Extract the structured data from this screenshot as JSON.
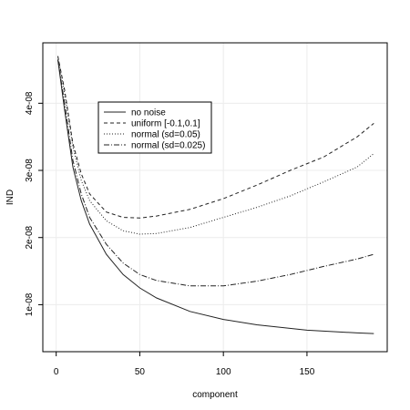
{
  "chart_data": {
    "type": "line",
    "title": "",
    "xlabel": "component",
    "ylabel": "IND",
    "xlim": [
      -8,
      198
    ],
    "ylim": [
      3e-09,
      4.9e-08
    ],
    "x_ticks": [
      0,
      50,
      100,
      150
    ],
    "x_tick_labels": [
      "0",
      "50",
      "100",
      "150"
    ],
    "y_ticks": [
      1e-08,
      2e-08,
      3e-08,
      4e-08
    ],
    "y_tick_labels": [
      "1e-08",
      "2e-08",
      "3e-08",
      "4e-08"
    ],
    "grid": true,
    "legend_position": "top-left",
    "series": [
      {
        "name": "no noise",
        "dash": "",
        "x": [
          1,
          5,
          10,
          15,
          20,
          30,
          40,
          50,
          60,
          80,
          100,
          120,
          150,
          180,
          190
        ],
        "y": [
          4.65e-08,
          3.9e-08,
          3.05e-08,
          2.55e-08,
          2.2e-08,
          1.75e-08,
          1.45e-08,
          1.25e-08,
          1.1e-08,
          9e-09,
          7.8e-09,
          7e-09,
          6.2e-09,
          5.8e-09,
          5.7e-09
        ]
      },
      {
        "name": "uniform [-0.1,0.1]",
        "dash": "4,3",
        "x": [
          1,
          5,
          10,
          15,
          20,
          30,
          40,
          50,
          60,
          80,
          100,
          120,
          140,
          160,
          180,
          190
        ],
        "y": [
          4.7e-08,
          4.2e-08,
          3.4e-08,
          2.95e-08,
          2.65e-08,
          2.38e-08,
          2.3e-08,
          2.29e-08,
          2.32e-08,
          2.42e-08,
          2.58e-08,
          2.78e-08,
          3e-08,
          3.2e-08,
          3.5e-08,
          3.7e-08
        ]
      },
      {
        "name": "normal (sd=0.05)",
        "dash": "1,2",
        "x": [
          1,
          5,
          10,
          15,
          20,
          30,
          40,
          50,
          60,
          80,
          100,
          120,
          140,
          160,
          180,
          190
        ],
        "y": [
          4.7e-08,
          4.15e-08,
          3.35e-08,
          2.85e-08,
          2.55e-08,
          2.25e-08,
          2.1e-08,
          2.05e-08,
          2.06e-08,
          2.15e-08,
          2.3e-08,
          2.45e-08,
          2.62e-08,
          2.83e-08,
          3.05e-08,
          3.25e-08
        ]
      },
      {
        "name": "normal (sd=0.025)",
        "dash": "6,2,1,2",
        "x": [
          1,
          5,
          10,
          15,
          20,
          30,
          40,
          50,
          60,
          80,
          100,
          120,
          140,
          160,
          180,
          190
        ],
        "y": [
          4.65e-08,
          4e-08,
          3.15e-08,
          2.65e-08,
          2.3e-08,
          1.9e-08,
          1.62e-08,
          1.45e-08,
          1.36e-08,
          1.28e-08,
          1.28e-08,
          1.35e-08,
          1.45e-08,
          1.57e-08,
          1.68e-08,
          1.75e-08
        ]
      }
    ]
  }
}
